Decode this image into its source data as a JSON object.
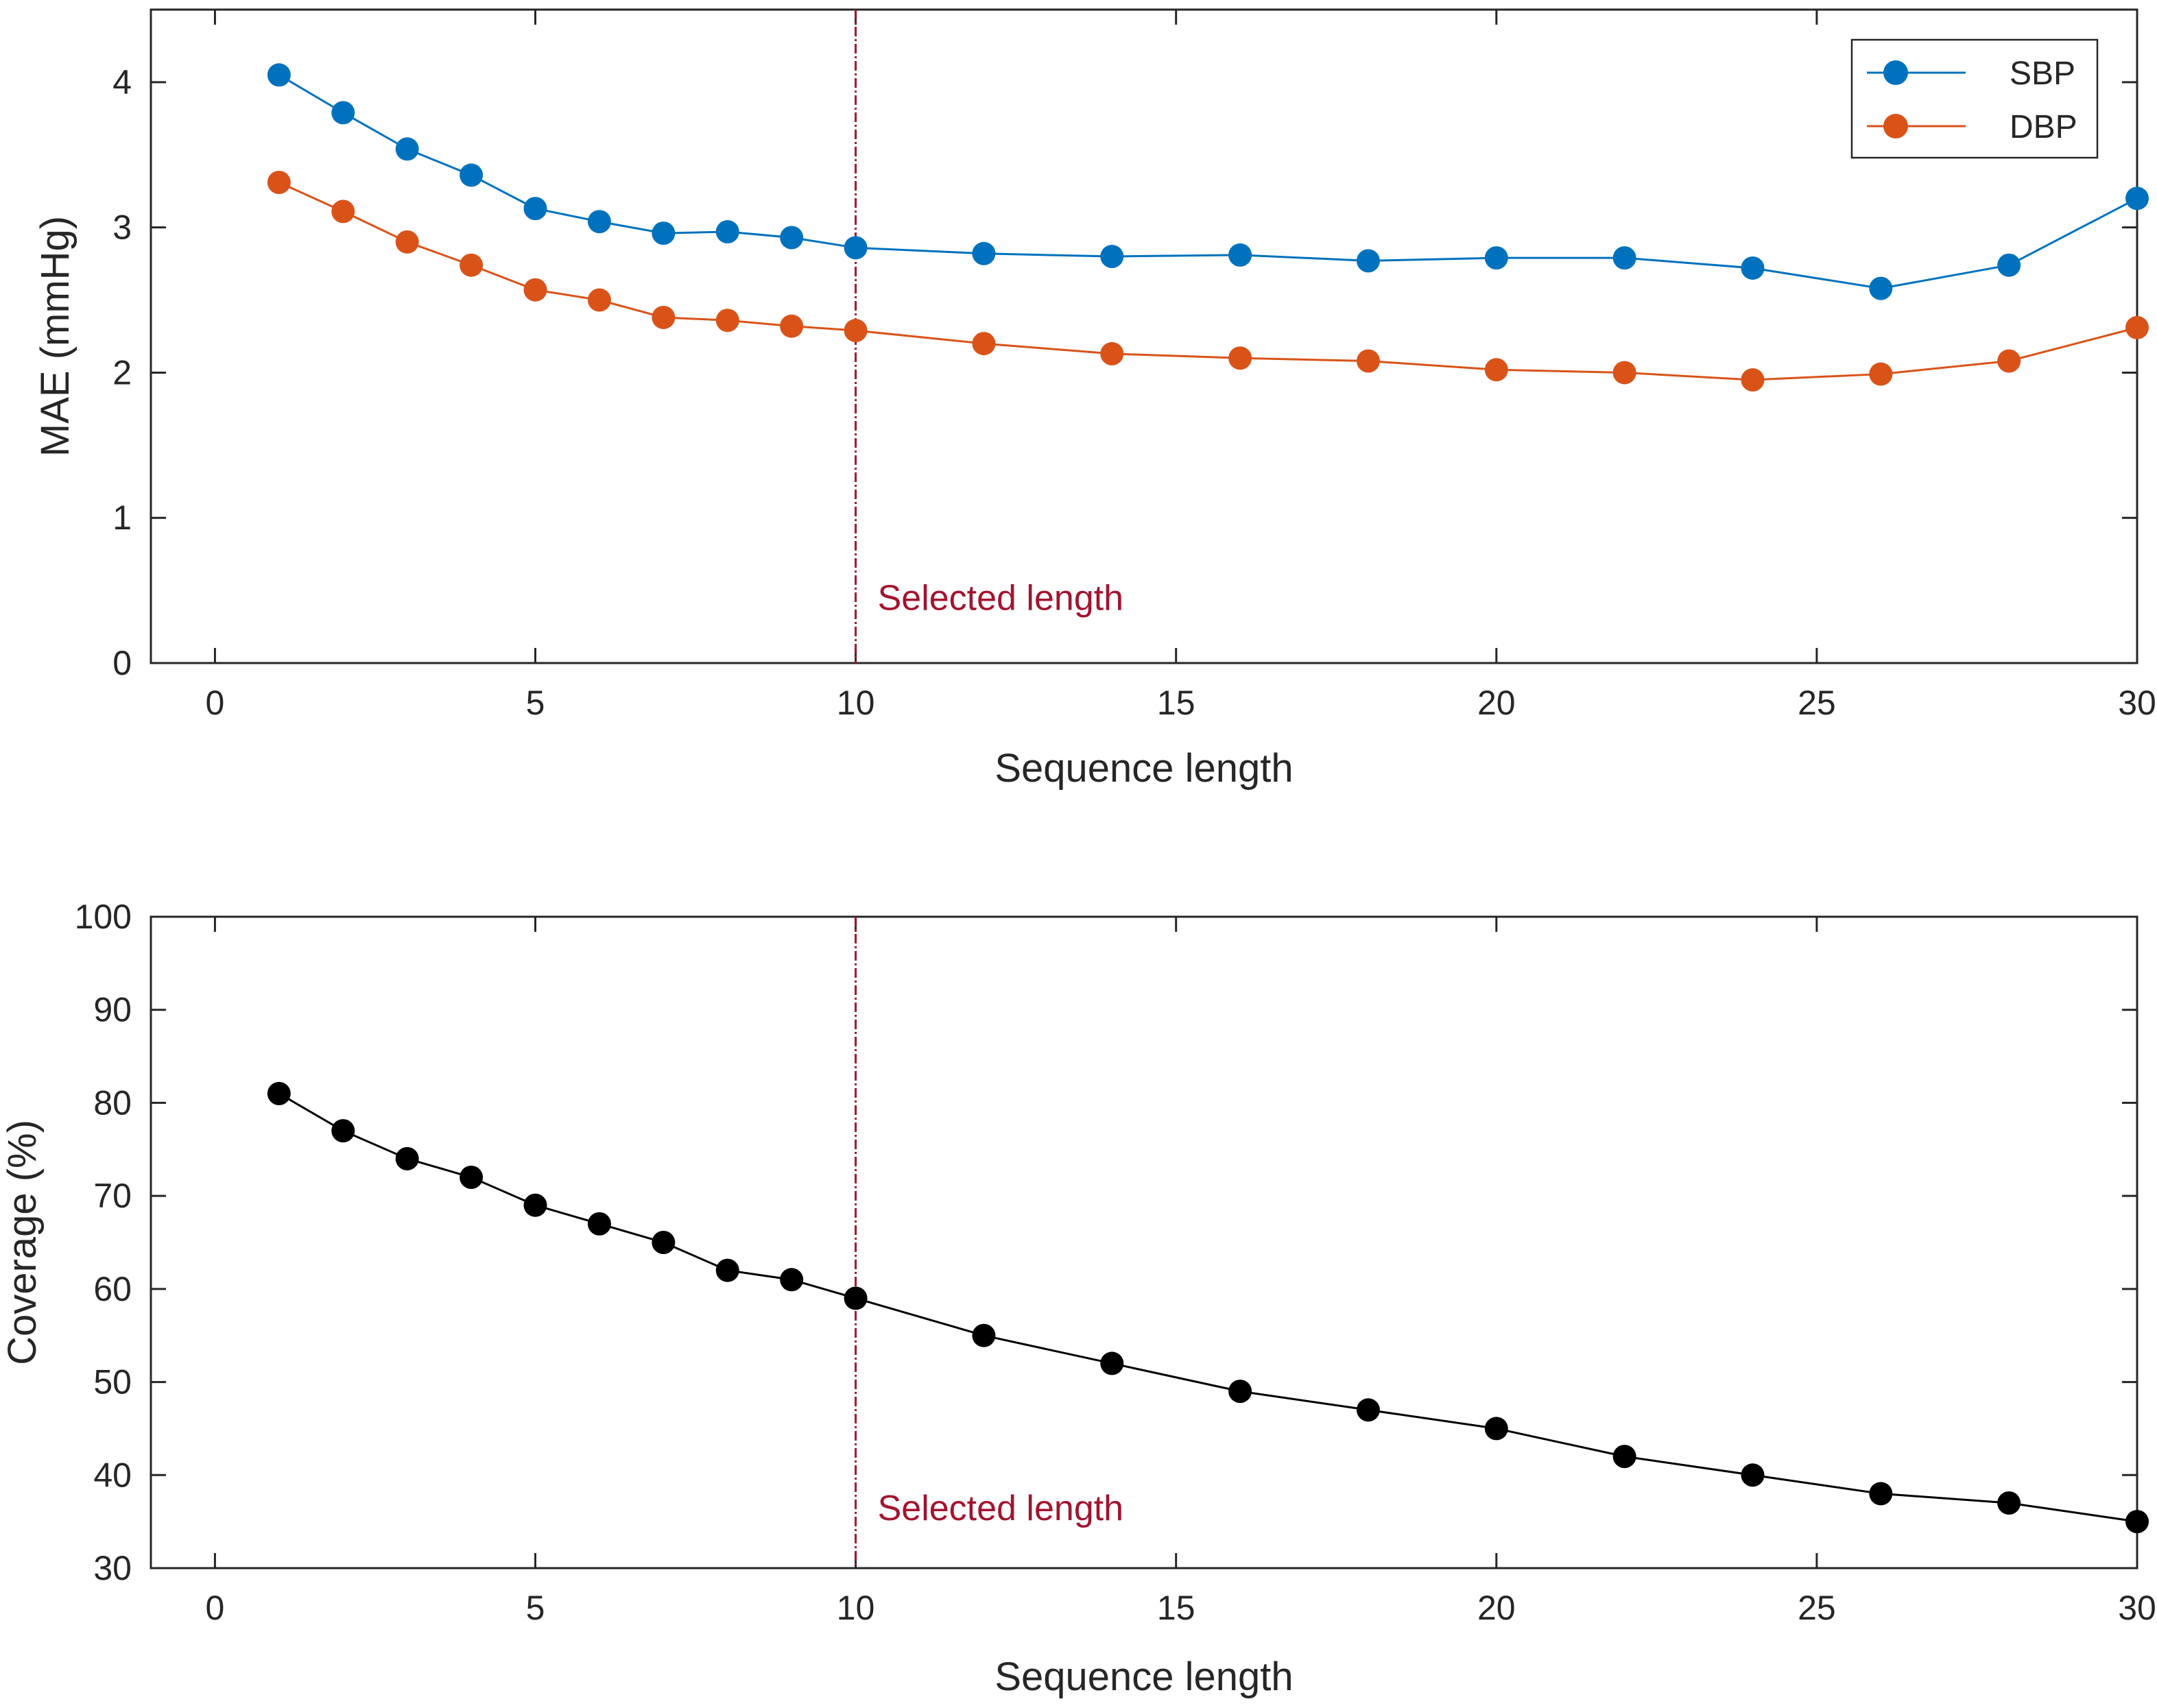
{
  "chart_data": [
    {
      "type": "line",
      "title": "",
      "xlabel": "Sequence length",
      "ylabel": "MAE (mmHg)",
      "xlim": [
        -1,
        30
      ],
      "ylim": [
        0,
        4.5
      ],
      "xticks": [
        0,
        5,
        10,
        15,
        20,
        25,
        30
      ],
      "yticks": [
        0,
        1,
        2,
        3,
        4
      ],
      "grid": false,
      "legend_position": "top-right",
      "x": [
        1,
        2,
        3,
        4,
        5,
        6,
        7,
        8,
        9,
        10,
        12,
        14,
        16,
        18,
        20,
        22,
        24,
        26,
        28,
        30
      ],
      "series": [
        {
          "name": "SBP",
          "color": "#0072BD",
          "values": [
            4.05,
            3.79,
            3.54,
            3.36,
            3.13,
            3.04,
            2.96,
            2.97,
            2.93,
            2.86,
            2.82,
            2.8,
            2.81,
            2.77,
            2.79,
            2.79,
            2.72,
            2.58,
            2.74,
            3.2
          ]
        },
        {
          "name": "DBP",
          "color": "#D95319",
          "values": [
            3.31,
            3.11,
            2.9,
            2.74,
            2.57,
            2.5,
            2.38,
            2.36,
            2.32,
            2.29,
            2.2,
            2.13,
            2.1,
            2.08,
            2.02,
            2.0,
            1.95,
            1.99,
            2.08,
            2.31
          ]
        }
      ],
      "reference_line": {
        "x": 10,
        "label": "Selected length",
        "label_y": 0.45,
        "color": "#A2142F"
      }
    },
    {
      "type": "line",
      "title": "",
      "xlabel": "Sequence length",
      "ylabel": "Coverage (%)",
      "xlim": [
        -1,
        30
      ],
      "ylim": [
        30,
        100
      ],
      "xticks": [
        0,
        5,
        10,
        15,
        20,
        25,
        30
      ],
      "yticks": [
        30,
        40,
        50,
        60,
        70,
        80,
        90,
        100
      ],
      "grid": false,
      "legend_position": "none",
      "x": [
        1,
        2,
        3,
        4,
        5,
        6,
        7,
        8,
        9,
        10,
        12,
        14,
        16,
        18,
        20,
        22,
        24,
        26,
        28,
        30
      ],
      "series": [
        {
          "name": "Coverage",
          "color": "#000000",
          "values": [
            81,
            77,
            74,
            72,
            69,
            67,
            65,
            62,
            61,
            59,
            55,
            52,
            49,
            47,
            45,
            42,
            40,
            38,
            37,
            35
          ]
        }
      ],
      "reference_line": {
        "x": 10,
        "label": "Selected length",
        "label_y": 36.5,
        "color": "#A2142F"
      }
    }
  ]
}
